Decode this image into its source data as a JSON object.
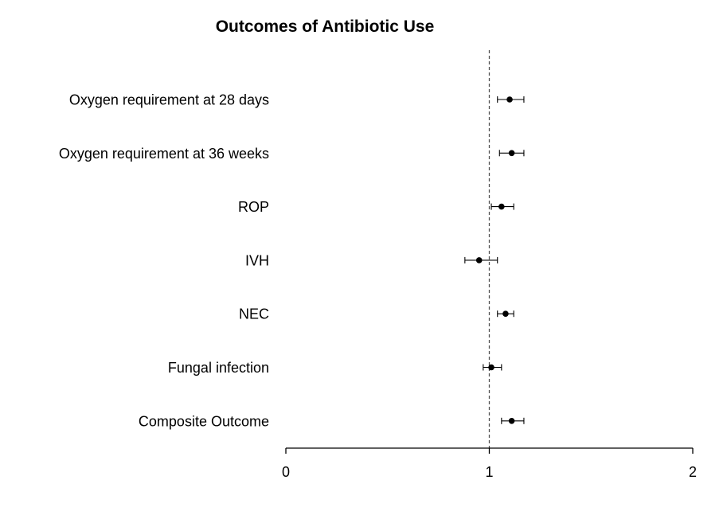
{
  "chart_data": {
    "type": "scatter",
    "subtype": "forest-plot",
    "title": "Outcomes of Antibiotic Use",
    "xlabel": "",
    "ylabel": "",
    "xlim": [
      0,
      2
    ],
    "x_ticks": [
      "0",
      "1",
      "2"
    ],
    "reference_line": 1,
    "reference_line_style": "dashed",
    "grid": false,
    "categories": [
      "Oxygen requirement at 28 days",
      "Oxygen requirement at 36 weeks",
      "ROP",
      "IVH",
      "NEC",
      "Fungal infection",
      "Composite Outcome"
    ],
    "estimates": [
      1.1,
      1.11,
      1.06,
      0.95,
      1.08,
      1.01,
      1.11
    ],
    "ci_lower": [
      1.04,
      1.05,
      1.01,
      0.88,
      1.04,
      0.97,
      1.06
    ],
    "ci_upper": [
      1.17,
      1.17,
      1.12,
      1.04,
      1.12,
      1.06,
      1.17
    ]
  },
  "colors": {
    "marker": "#000000",
    "axis": "#000000",
    "reference_line": "#555555"
  }
}
